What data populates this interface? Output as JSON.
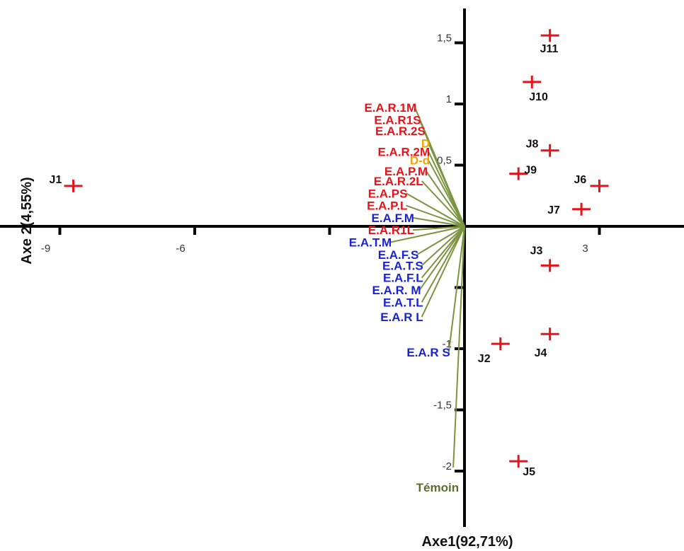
{
  "chart_data": {
    "type": "scatter",
    "subtype": "pca-biplot",
    "xlabel": "Axe1(92,71%)",
    "ylabel": "Axe 2(4,55%)",
    "x_ticks": [
      {
        "value": -9,
        "label": "-9"
      },
      {
        "value": -6,
        "label": "-6"
      },
      {
        "value": -3,
        "label": ""
      },
      {
        "value": 3,
        "label": "3"
      }
    ],
    "y_ticks": [
      {
        "value": 1.5,
        "label": "1,5"
      },
      {
        "value": 1,
        "label": "1"
      },
      {
        "value": 0.5,
        "label": "0,5"
      },
      {
        "value": -0.5,
        "label": ""
      },
      {
        "value": -1,
        "label": "-1"
      },
      {
        "value": -1.5,
        "label": "-1,5"
      },
      {
        "value": -2,
        "label": "-2"
      }
    ],
    "colors": {
      "observation": "#e8131a",
      "vector": "#7a9440",
      "label_red": "#e8131a",
      "label_blue": "#1a22d6",
      "label_orange": "#f0a500",
      "label_green": "#5b6e2e"
    },
    "observations": [
      {
        "label": "J1",
        "x": -8.7,
        "y": 0.33
      },
      {
        "label": "J2",
        "x": 0.8,
        "y": -0.96
      },
      {
        "label": "J3",
        "x": 1.9,
        "y": -0.32
      },
      {
        "label": "J4",
        "x": 1.9,
        "y": -0.88
      },
      {
        "label": "J5",
        "x": 1.2,
        "y": -1.92
      },
      {
        "label": "J6",
        "x": 3.0,
        "y": 0.33
      },
      {
        "label": "J7",
        "x": 2.6,
        "y": 0.14
      },
      {
        "label": "J8",
        "x": 1.9,
        "y": 0.62
      },
      {
        "label": "J9",
        "x": 1.2,
        "y": 0.43
      },
      {
        "label": "J10",
        "x": 1.5,
        "y": 1.18
      },
      {
        "label": "J11",
        "x": 1.9,
        "y": 1.56
      }
    ],
    "variables": [
      {
        "label": "E.A.R.1M",
        "x": -1.1,
        "y": 0.97,
        "color": "red"
      },
      {
        "label": "E.A.R1S",
        "x": -1.0,
        "y": 0.87,
        "color": "red"
      },
      {
        "label": "E.A.R.2S",
        "x": -0.9,
        "y": 0.78,
        "color": "red"
      },
      {
        "label": "D",
        "x": -0.8,
        "y": 0.68,
        "color": "orange"
      },
      {
        "label": "E.A.R.2M",
        "x": -0.8,
        "y": 0.61,
        "color": "red"
      },
      {
        "label": "D-d",
        "x": -0.8,
        "y": 0.54,
        "color": "orange"
      },
      {
        "label": "E.A.P.M",
        "x": -0.85,
        "y": 0.45,
        "color": "red"
      },
      {
        "label": "E.A.R.2L",
        "x": -0.95,
        "y": 0.37,
        "color": "red"
      },
      {
        "label": "E.A.PS",
        "x": -1.3,
        "y": 0.27,
        "color": "red"
      },
      {
        "label": "E.A.P.L",
        "x": -1.3,
        "y": 0.17,
        "color": "red"
      },
      {
        "label": "E.A.F.M",
        "x": -1.15,
        "y": 0.07,
        "color": "blue"
      },
      {
        "label": "E.A.R1L",
        "x": -1.15,
        "y": -0.03,
        "color": "red"
      },
      {
        "label": "E.A.T.M",
        "x": -1.65,
        "y": -0.13,
        "color": "blue"
      },
      {
        "label": "E.A.F.S",
        "x": -1.05,
        "y": -0.23,
        "color": "blue"
      },
      {
        "label": "E.A.T.S",
        "x": -0.95,
        "y": -0.32,
        "color": "blue"
      },
      {
        "label": "E.A.F.L",
        "x": -0.95,
        "y": -0.42,
        "color": "blue"
      },
      {
        "label": "E.A.R. M",
        "x": -1.0,
        "y": -0.52,
        "color": "blue"
      },
      {
        "label": "E.A.T.L",
        "x": -0.95,
        "y": -0.62,
        "color": "blue"
      },
      {
        "label": "E.A.R L",
        "x": -0.95,
        "y": -0.74,
        "color": "blue"
      },
      {
        "label": "E.A.R S",
        "x": -0.35,
        "y": -1.03,
        "color": "blue"
      },
      {
        "label": "Témoin",
        "x": -0.25,
        "y": -1.97,
        "color": "green"
      }
    ]
  }
}
